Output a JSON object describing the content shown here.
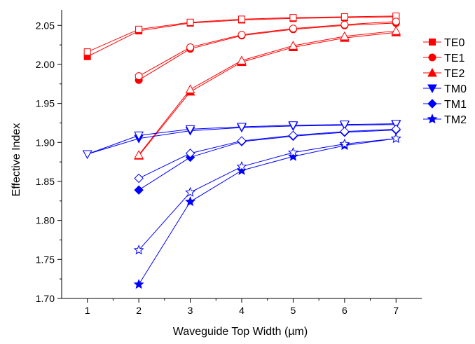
{
  "chart_data": {
    "type": "line",
    "xlabel": "Waveguide Top Width (µm)",
    "ylabel": "Effective Index",
    "xlim": [
      0.5,
      7.5
    ],
    "ylim": [
      1.7,
      2.07
    ],
    "xticks": [
      1,
      2,
      3,
      4,
      5,
      6,
      7
    ],
    "yticks": [
      "1.70",
      "1.75",
      "1.80",
      "1.85",
      "1.90",
      "1.95",
      "2.00",
      "2.05"
    ],
    "legend_placement": "right",
    "series": [
      {
        "name": "TE0",
        "color": "#ff0000",
        "marker": "square",
        "filled": true,
        "x": [
          1,
          2,
          3,
          4,
          5,
          6,
          7
        ],
        "values": [
          2.01,
          2.043,
          2.053,
          2.057,
          2.059,
          2.06,
          2.061
        ]
      },
      {
        "name": "TE0",
        "color": "#ff0000",
        "marker": "square",
        "filled": false,
        "x": [
          1,
          2,
          3,
          4,
          5,
          6,
          7
        ],
        "values": [
          2.016,
          2.045,
          2.054,
          2.058,
          2.06,
          2.061,
          2.062
        ]
      },
      {
        "name": "TE1",
        "color": "#ff0000",
        "marker": "circle",
        "filled": true,
        "x": [
          2,
          3,
          4,
          5,
          6,
          7
        ],
        "values": [
          1.98,
          2.02,
          2.037,
          2.045,
          2.05,
          2.053
        ]
      },
      {
        "name": "TE1",
        "color": "#ff0000",
        "marker": "circle",
        "filled": false,
        "x": [
          2,
          3,
          4,
          5,
          6,
          7
        ],
        "values": [
          1.985,
          2.022,
          2.038,
          2.046,
          2.051,
          2.055
        ]
      },
      {
        "name": "TE2",
        "color": "#ff0000",
        "marker": "triangle",
        "filled": true,
        "x": [
          2,
          3,
          4,
          5,
          6,
          7
        ],
        "values": [
          1.883,
          1.965,
          2.003,
          2.022,
          2.034,
          2.041
        ]
      },
      {
        "name": "TE2",
        "color": "#ff0000",
        "marker": "triangle",
        "filled": false,
        "x": [
          2,
          3,
          4,
          5,
          6,
          7
        ],
        "values": [
          1.884,
          1.968,
          2.005,
          2.024,
          2.036,
          2.043
        ]
      },
      {
        "name": "TM0",
        "color": "#0000ff",
        "marker": "triangle-down",
        "filled": true,
        "x": [
          1,
          2,
          3,
          4,
          5,
          6,
          7
        ],
        "values": [
          1.885,
          1.905,
          1.915,
          1.919,
          1.921,
          1.922,
          1.923
        ]
      },
      {
        "name": "TM0",
        "color": "#0000ff",
        "marker": "triangle-down",
        "filled": false,
        "x": [
          1,
          2,
          3,
          4,
          5,
          6,
          7
        ],
        "values": [
          1.885,
          1.909,
          1.917,
          1.92,
          1.922,
          1.923,
          1.924
        ]
      },
      {
        "name": "TM1",
        "color": "#0000ff",
        "marker": "diamond",
        "filled": true,
        "x": [
          2,
          3,
          4,
          5,
          6,
          7
        ],
        "values": [
          1.839,
          1.881,
          1.901,
          1.908,
          1.913,
          1.916
        ]
      },
      {
        "name": "TM1",
        "color": "#0000ff",
        "marker": "diamond",
        "filled": false,
        "x": [
          2,
          3,
          4,
          5,
          6,
          7
        ],
        "values": [
          1.854,
          1.886,
          1.902,
          1.909,
          1.914,
          1.917
        ]
      },
      {
        "name": "TM2",
        "color": "#0000ff",
        "marker": "star",
        "filled": true,
        "x": [
          2,
          3,
          4,
          5,
          6,
          7
        ],
        "values": [
          1.718,
          1.824,
          1.864,
          1.882,
          1.896,
          1.905
        ]
      },
      {
        "name": "TM2",
        "color": "#0000ff",
        "marker": "star",
        "filled": false,
        "x": [
          2,
          3,
          4,
          5,
          6,
          7
        ],
        "values": [
          1.762,
          1.836,
          1.869,
          1.887,
          1.898,
          1.905
        ]
      }
    ],
    "legend": [
      {
        "label": "TE0",
        "color": "#ff0000",
        "marker": "square"
      },
      {
        "label": "TE1",
        "color": "#ff0000",
        "marker": "circle"
      },
      {
        "label": "TE2",
        "color": "#ff0000",
        "marker": "triangle"
      },
      {
        "label": "TM0",
        "color": "#0000ff",
        "marker": "triangle-down"
      },
      {
        "label": "TM1",
        "color": "#0000ff",
        "marker": "diamond"
      },
      {
        "label": "TM2",
        "color": "#0000ff",
        "marker": "star"
      }
    ]
  }
}
